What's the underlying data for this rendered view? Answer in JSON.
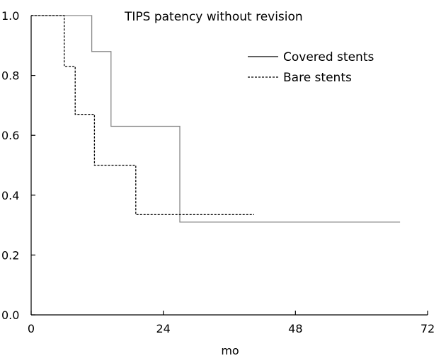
{
  "chart_data": {
    "type": "line",
    "step": true,
    "title": "TIPS patency without revision",
    "xlabel": "mo",
    "ylabel": "",
    "xlim": [
      0,
      72
    ],
    "ylim": [
      0,
      1.0
    ],
    "xticks": [
      0,
      24,
      48,
      72
    ],
    "yticks": [
      0.0,
      0.2,
      0.4,
      0.6,
      0.8,
      1.0
    ],
    "xtick_labels": [
      "0",
      "24",
      "48",
      "72"
    ],
    "ytick_labels": [
      "0.0",
      "0.2",
      "0.4",
      "0.6",
      "0.8",
      "1.0"
    ],
    "grid": false,
    "legend_position": "top-right",
    "series": [
      {
        "name": "Covered stents",
        "style": "solid",
        "color": "#888888",
        "x": [
          0,
          11,
          11,
          14.5,
          14.5,
          27,
          27,
          67
        ],
        "y": [
          1.0,
          1.0,
          0.88,
          0.88,
          0.63,
          0.63,
          0.31,
          0.31
        ]
      },
      {
        "name": "Bare stents",
        "style": "dashed",
        "color": "#000000",
        "x": [
          0,
          6,
          6,
          8,
          8,
          11.5,
          11.5,
          19,
          19,
          40.5
        ],
        "y": [
          1.0,
          1.0,
          0.83,
          0.83,
          0.67,
          0.67,
          0.5,
          0.5,
          0.335,
          0.335
        ]
      }
    ]
  }
}
